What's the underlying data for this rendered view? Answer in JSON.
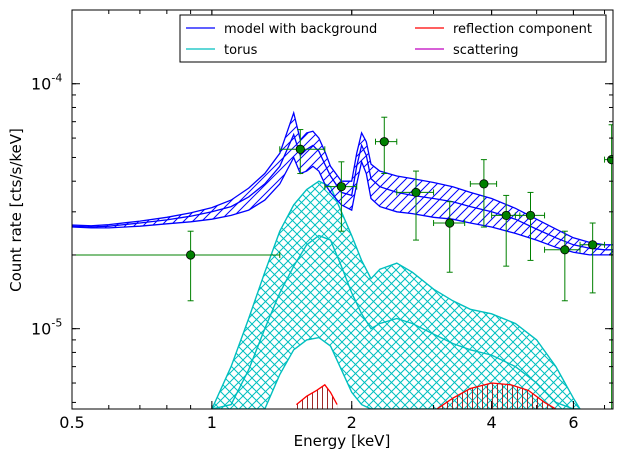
{
  "chart_data": {
    "type": "line",
    "xlabel": "Energy [keV]",
    "ylabel": "Count rate [cts/s/keV]",
    "x_scale": "log",
    "y_scale": "log",
    "xlim": [
      0.5,
      7.3
    ],
    "ylim": [
      4.7e-06,
      0.0002
    ],
    "x_ticks": [
      {
        "value": 0.5,
        "label": "0.5"
      },
      {
        "value": 1,
        "label": "1"
      },
      {
        "value": 2,
        "label": "2"
      },
      {
        "value": 4,
        "label": "4"
      },
      {
        "value": 6,
        "label": "6"
      }
    ],
    "y_ticks": [
      {
        "value": 1e-05,
        "mant": "10",
        "exp": "-5"
      },
      {
        "value": 0.0001,
        "mant": "10",
        "exp": "-4"
      }
    ],
    "grid": false,
    "legend_position": "top-right",
    "legend": [
      {
        "label": "model with background",
        "color": "#0000ff"
      },
      {
        "label": "torus",
        "color": "#00bfbf"
      },
      {
        "label": "reflection component",
        "color": "#ff0000"
      },
      {
        "label": "scattering",
        "color": "#bf00bf"
      }
    ],
    "colors": {
      "model": "#0000ff",
      "torus": "#00bfbf",
      "reflection": "#ff0000",
      "reflection_hatch": "#a02828",
      "data": "#008000",
      "data_marker": "#008000"
    },
    "model_band": {
      "x": [
        0.5,
        0.55,
        0.6,
        0.7,
        0.8,
        0.9,
        1.0,
        1.1,
        1.2,
        1.3,
        1.4,
        1.5,
        1.55,
        1.6,
        1.65,
        1.7,
        1.75,
        1.8,
        1.9,
        2.0,
        2.05,
        2.1,
        2.15,
        2.2,
        2.3,
        2.5,
        2.7,
        3.0,
        3.3,
        3.6,
        4.0,
        4.5,
        5.0,
        5.5,
        6.0,
        6.5,
        7.0,
        7.3
      ],
      "upper": [
        2.65e-05,
        2.63e-05,
        2.66e-05,
        2.75e-05,
        2.85e-05,
        2.97e-05,
        3.12e-05,
        3.35e-05,
        3.75e-05,
        4.3e-05,
        5.2e-05,
        7.6e-05,
        5.9e-05,
        6.3e-05,
        6.4e-05,
        6e-05,
        5.3e-05,
        4.6e-05,
        4e-05,
        4e-05,
        5.2e-05,
        6.3e-05,
        5.8e-05,
        4.7e-05,
        4.4e-05,
        4.2e-05,
        4.1e-05,
        3.95e-05,
        3.8e-05,
        3.6e-05,
        3.4e-05,
        3.1e-05,
        2.8e-05,
        2.55e-05,
        2.35e-05,
        2.25e-05,
        2.2e-05,
        2.2e-05
      ],
      "center": [
        2.62e-05,
        2.6e-05,
        2.62e-05,
        2.7e-05,
        2.78e-05,
        2.88e-05,
        3e-05,
        3.15e-05,
        3.45e-05,
        3.9e-05,
        4.6e-05,
        6.2e-05,
        5.1e-05,
        5.4e-05,
        5.6e-05,
        5.3e-05,
        4.7e-05,
        4.2e-05,
        3.6e-05,
        3.5e-05,
        4.6e-05,
        5.6e-05,
        5.1e-05,
        4.1e-05,
        3.8e-05,
        3.6e-05,
        3.5e-05,
        3.4e-05,
        3.3e-05,
        3.15e-05,
        3e-05,
        2.8e-05,
        2.55e-05,
        2.35e-05,
        2.2e-05,
        2.13e-05,
        2.1e-05,
        2.1e-05
      ],
      "lower": [
        2.6e-05,
        2.58e-05,
        2.58e-05,
        2.62e-05,
        2.68e-05,
        2.73e-05,
        2.8e-05,
        2.9e-05,
        3.05e-05,
        3.35e-05,
        3.9e-05,
        5e-05,
        4.3e-05,
        4.4e-05,
        4.6e-05,
        4.4e-05,
        3.9e-05,
        3.6e-05,
        3.2e-05,
        3.05e-05,
        3.9e-05,
        4.8e-05,
        4.3e-05,
        3.4e-05,
        3.15e-05,
        3e-05,
        2.95e-05,
        2.85e-05,
        2.8e-05,
        2.7e-05,
        2.6e-05,
        2.45e-05,
        2.3e-05,
        2.15e-05,
        2.05e-05,
        2e-05,
        2e-05,
        2e-05
      ]
    },
    "torus_band": {
      "x": [
        1.0,
        1.1,
        1.2,
        1.3,
        1.4,
        1.5,
        1.6,
        1.7,
        1.8,
        1.9,
        2.0,
        2.1,
        2.2,
        2.3,
        2.5,
        2.7,
        3.0,
        3.3,
        3.6,
        4.0,
        4.5,
        5.0,
        5.5,
        6.0,
        6.2
      ],
      "upper": [
        4.7e-06,
        7e-06,
        1.1e-05,
        1.7e-05,
        2.5e-05,
        3.2e-05,
        3.7e-05,
        4e-05,
        3.8e-05,
        3e-05,
        2.4e-05,
        1.9e-05,
        1.6e-05,
        1.75e-05,
        1.85e-05,
        1.7e-05,
        1.45e-05,
        1.3e-05,
        1.2e-05,
        1.15e-05,
        1.05e-05,
        9e-06,
        7e-06,
        5.2e-06,
        4.7e-06
      ],
      "center": [
        4.7e-06,
        4.9e-06,
        6.8e-06,
        1e-05,
        1.4e-05,
        1.8e-05,
        2.2e-05,
        2.4e-05,
        2.3e-05,
        1.8e-05,
        1.4e-05,
        1.15e-05,
        1e-05,
        1.05e-05,
        1.1e-05,
        1.05e-05,
        9.5e-06,
        8.7e-06,
        8.2e-06,
        7.8e-06,
        7e-06,
        6e-06,
        5e-06,
        4.7e-06,
        4.7e-06
      ],
      "lower": [
        4.7e-06,
        4.7e-06,
        4.7e-06,
        4.7e-06,
        6.5e-06,
        8.2e-06,
        9e-06,
        9.2e-06,
        8.5e-06,
        6.8e-06,
        5.5e-06,
        4.9e-06,
        4.7e-06,
        4.7e-06,
        4.7e-06,
        4.7e-06,
        4.7e-06,
        4.7e-06,
        4.7e-06,
        4.7e-06,
        4.7e-06,
        4.7e-06,
        4.7e-06,
        4.7e-06,
        4.7e-06
      ]
    },
    "reflection_band": [
      {
        "x": [
          1.52,
          1.6,
          1.68,
          1.75,
          1.8,
          1.86
        ],
        "upper": [
          4.9e-06,
          5.3e-06,
          5.6e-06,
          5.9e-06,
          5.5e-06,
          4.9e-06
        ],
        "lower": [
          4.7e-06,
          4.7e-06,
          4.7e-06,
          4.7e-06,
          4.7e-06,
          4.7e-06
        ]
      },
      {
        "x": [
          3.05,
          3.3,
          3.6,
          4.0,
          4.4,
          4.8,
          5.2,
          5.5
        ],
        "upper": [
          4.7e-06,
          5.2e-06,
          5.7e-06,
          6e-06,
          5.9e-06,
          5.6e-06,
          5e-06,
          4.7e-06
        ],
        "lower": [
          4.7e-06,
          4.7e-06,
          4.7e-06,
          4.7e-06,
          4.7e-06,
          4.7e-06,
          4.7e-06,
          4.7e-06
        ]
      }
    ],
    "data_points": [
      {
        "x": 0.9,
        "y": 2e-05,
        "xerr": [
          0.5,
          1.4
        ],
        "yerr": [
          1.3e-05,
          2.5e-05
        ]
      },
      {
        "x": 1.55,
        "y": 5.4e-05,
        "xerr": [
          1.4,
          1.75
        ],
        "yerr": [
          4.3e-05,
          6.5e-05
        ]
      },
      {
        "x": 1.9,
        "y": 3.8e-05,
        "xerr": [
          1.75,
          2.05
        ],
        "yerr": [
          2.5e-05,
          4.8e-05
        ]
      },
      {
        "x": 2.35,
        "y": 5.8e-05,
        "xerr": [
          2.25,
          2.5
        ],
        "yerr": [
          4.3e-05,
          7.3e-05
        ]
      },
      {
        "x": 2.75,
        "y": 3.6e-05,
        "xerr": [
          2.5,
          3.0
        ],
        "yerr": [
          2.3e-05,
          4.4e-05
        ]
      },
      {
        "x": 3.25,
        "y": 2.7e-05,
        "xerr": [
          3.0,
          3.5
        ],
        "yerr": [
          1.7e-05,
          3.3e-05
        ]
      },
      {
        "x": 3.85,
        "y": 3.9e-05,
        "xerr": [
          3.6,
          4.1
        ],
        "yerr": [
          2.6e-05,
          4.9e-05
        ]
      },
      {
        "x": 4.3,
        "y": 2.9e-05,
        "xerr": [
          4.0,
          4.6
        ],
        "yerr": [
          1.8e-05,
          3.5e-05
        ]
      },
      {
        "x": 4.85,
        "y": 2.9e-05,
        "xerr": [
          4.5,
          5.2
        ],
        "yerr": [
          1.9e-05,
          3.6e-05
        ]
      },
      {
        "x": 5.75,
        "y": 2.1e-05,
        "xerr": [
          5.2,
          6.2
        ],
        "yerr": [
          1.3e-05,
          2.5e-05
        ]
      },
      {
        "x": 6.6,
        "y": 2.2e-05,
        "xerr": [
          6.2,
          7.0
        ],
        "yerr": [
          1.4e-05,
          2.7e-05
        ]
      },
      {
        "x": 7.25,
        "y": 4.9e-05,
        "xerr": [
          7.0,
          7.3
        ],
        "yerr": [
          4.7e-06,
          6.8e-05
        ]
      }
    ]
  }
}
